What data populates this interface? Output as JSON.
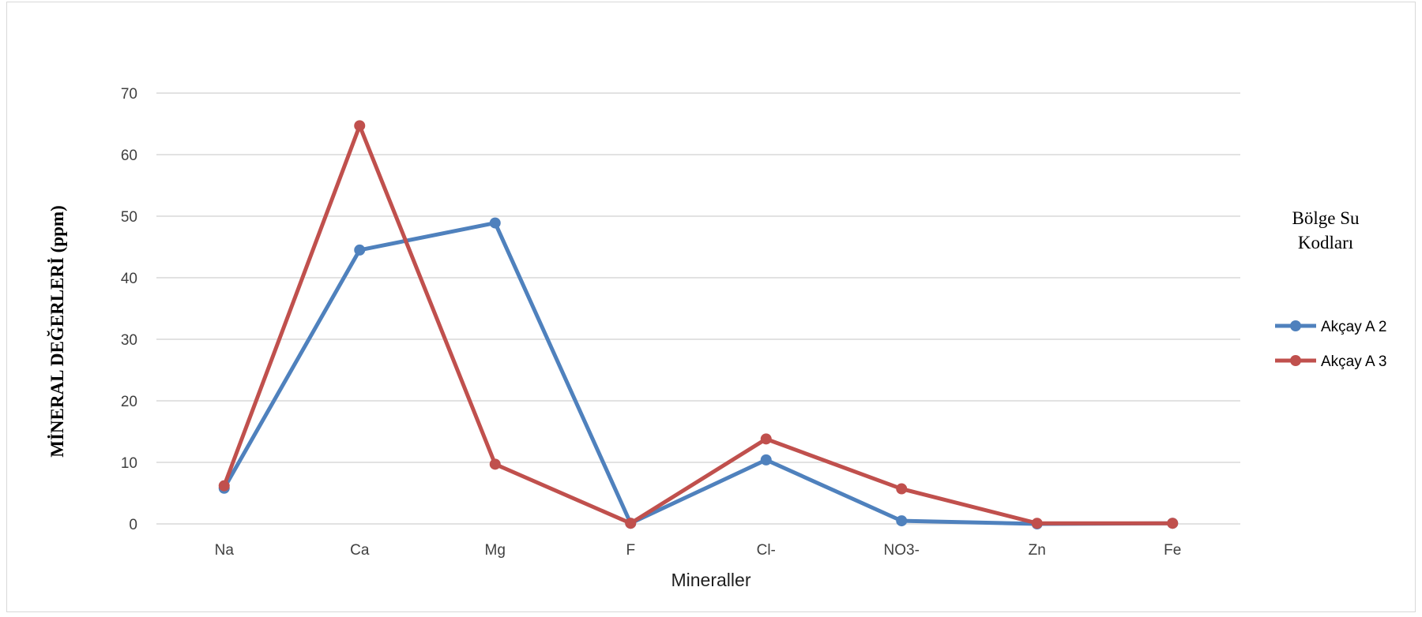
{
  "chart_data": {
    "type": "line",
    "categories": [
      "Na",
      "Ca",
      "Mg",
      "F",
      "Cl-",
      "NO3-",
      "Zn",
      "Fe"
    ],
    "series": [
      {
        "name": "Akçay  A 2",
        "color": "#4f81bd",
        "values": [
          5.8,
          44.5,
          48.9,
          0.1,
          10.4,
          0.5,
          0,
          0.1
        ]
      },
      {
        "name": "Akçay  A 3",
        "color": "#c0504d",
        "values": [
          6.2,
          64.7,
          9.7,
          0.1,
          13.8,
          5.7,
          0.1,
          0.1
        ]
      }
    ],
    "ylim": [
      0,
      70
    ],
    "yticks": [
      0,
      10,
      20,
      30,
      40,
      50,
      60,
      70
    ],
    "xlabel": "Mineraller",
    "ylabel": "MİNERAL DEĞERLERİ (ppm)",
    "legend": {
      "title_lines": [
        "Bölge Su",
        "Kodları"
      ],
      "position": "right"
    },
    "grid": true
  }
}
